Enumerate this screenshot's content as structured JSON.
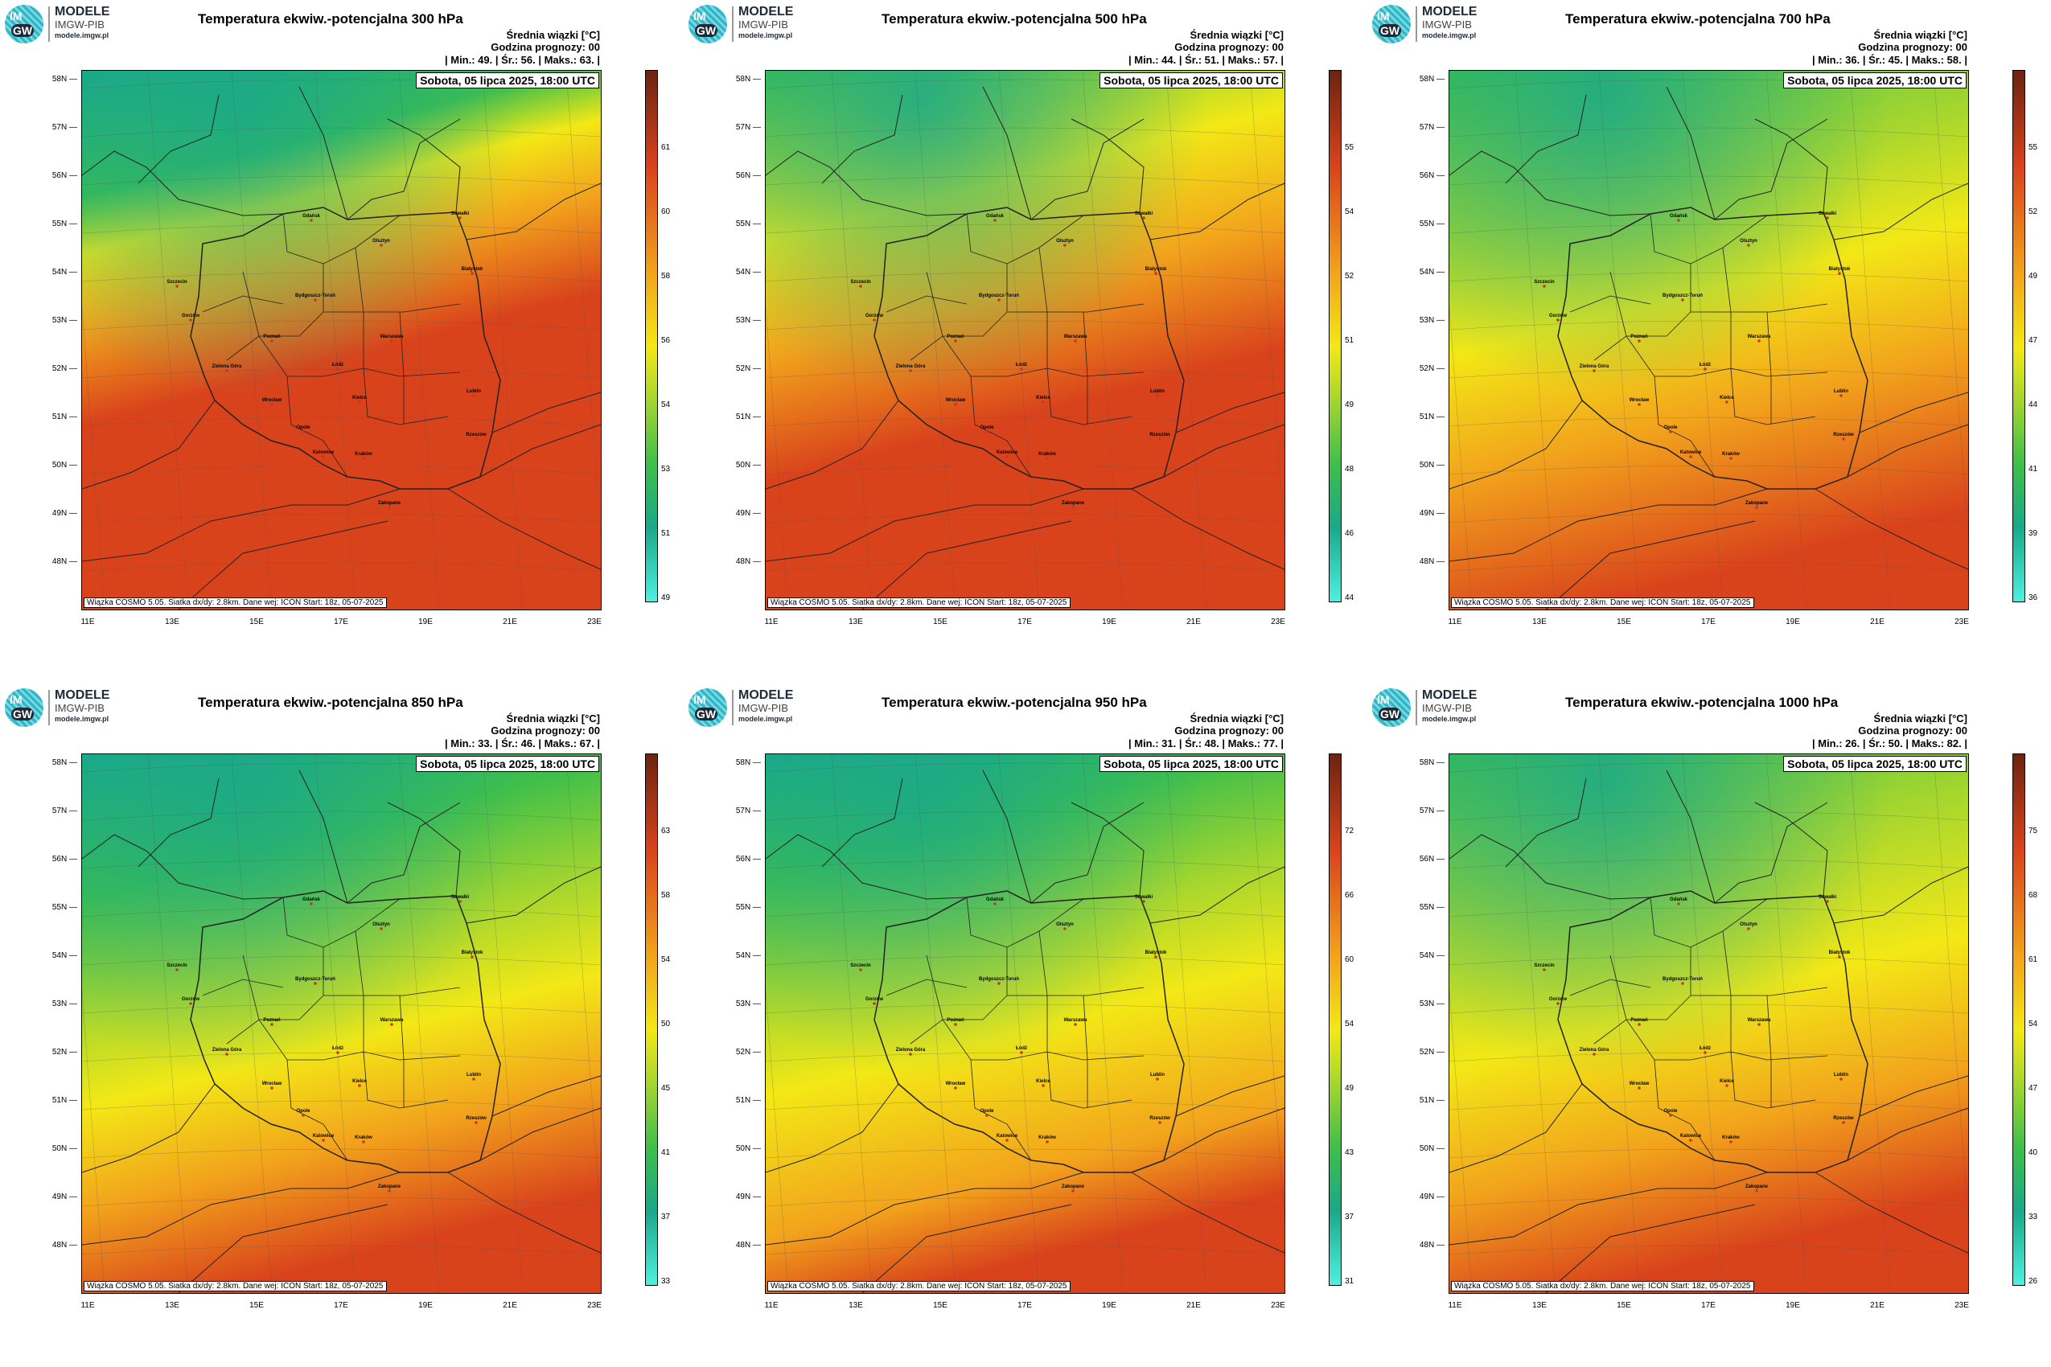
{
  "logo": {
    "circle_top": "IM",
    "circle_bottom": "GW",
    "name": "MODELE",
    "org": "IMGW-PIB",
    "url": "modele.imgw.pl"
  },
  "header": {
    "mean_label": "Średnia wiązki [°C]",
    "hour_label": "Godzina prognozy: 00"
  },
  "date": "Sobota, 05 lipca 2025, 18:00 UTC",
  "credit": "Wiązka COSMO 5.05. Siatka dx/dy: 2.8km. Dane wej: ICON Start: 18z, 05-07-2025",
  "lat_labels": [
    "58N",
    "57N",
    "56N",
    "55N",
    "54N",
    "53N",
    "52N",
    "51N",
    "50N",
    "49N",
    "48N"
  ],
  "lon_labels": [
    "11E",
    "13E",
    "15E",
    "17E",
    "19E",
    "21E",
    "23E"
  ],
  "cities": [
    "Gdańsk",
    "Suwałki",
    "Olsztyn",
    "Białystok",
    "Szczecin",
    "Bydgoszcz-Toruń",
    "Gorzów",
    "Poznań",
    "Warszawa",
    "Zielona Góra",
    "Łódź",
    "Lublin",
    "Wrocław",
    "Kielce",
    "Opole",
    "Rzeszów",
    "Katowice",
    "Kraków",
    "Zakopane"
  ],
  "colors": {
    "teal": "#1aa88a",
    "green": "#3fbf4a",
    "lime": "#a6d62e",
    "yellow": "#f3e816",
    "orange": "#f2a31c",
    "red": "#d9431c",
    "darkred": "#6b2410",
    "cyan": "#4ef0e0"
  },
  "panels": [
    {
      "title": "Temperatura ekwiw.-potencjalna 300 hPa",
      "min": "49.",
      "mean": "56.",
      "max": "63.",
      "cb": [
        "61",
        "60",
        "58",
        "56",
        "54",
        "53",
        "51",
        "49"
      ],
      "pattern": "p300"
    },
    {
      "title": "Temperatura ekwiw.-potencjalna 500 hPa",
      "min": "44.",
      "mean": "51.",
      "max": "57.",
      "cb": [
        "55",
        "54",
        "52",
        "51",
        "49",
        "48",
        "46",
        "44"
      ],
      "pattern": "p500"
    },
    {
      "title": "Temperatura ekwiw.-potencjalna 700 hPa",
      "min": "36.",
      "mean": "45.",
      "max": "58.",
      "cb": [
        "55",
        "52",
        "49",
        "47",
        "44",
        "41",
        "39",
        "36"
      ],
      "pattern": "p700"
    },
    {
      "title": "Temperatura ekwiw.-potencjalna 850 hPa",
      "min": "33.",
      "mean": "46.",
      "max": "67.",
      "cb": [
        "63",
        "58",
        "54",
        "50",
        "45",
        "41",
        "37",
        "33"
      ],
      "pattern": "p850"
    },
    {
      "title": "Temperatura ekwiw.-potencjalna 950 hPa",
      "min": "31.",
      "mean": "48.",
      "max": "77.",
      "cb": [
        "72",
        "66",
        "60",
        "54",
        "49",
        "43",
        "37",
        "31"
      ],
      "pattern": "p950"
    },
    {
      "title": "Temperatura ekwiw.-potencjalna 1000 hPa",
      "min": "26.",
      "mean": "50.",
      "max": "82.",
      "cb": [
        "75",
        "68",
        "61",
        "54",
        "47",
        "40",
        "33",
        "26"
      ],
      "pattern": "p1000"
    }
  ],
  "stat_labels": {
    "min": "| Min.:",
    "mean": "| Śr.:",
    "max": "| Maks.:",
    "end": "|"
  }
}
